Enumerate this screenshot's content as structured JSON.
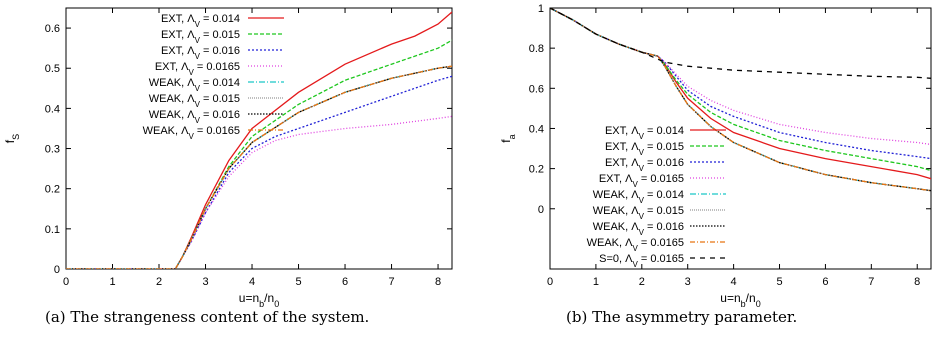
{
  "chart_data": [
    {
      "type": "line",
      "caption": "(a) The strangeness content of the system.",
      "ylabel": "f_S",
      "xlabel": "u=n_b/n_0",
      "xlim": [
        0,
        8.3
      ],
      "ylim": [
        0,
        0.65
      ],
      "xticks": [
        0,
        1,
        2,
        3,
        4,
        5,
        6,
        7,
        8
      ],
      "yticks": [
        0,
        0.1,
        0.2,
        0.3,
        0.4,
        0.5,
        0.6
      ],
      "grid": false,
      "legend_position": "top-right",
      "series": [
        {
          "name": "EXT, Λ_V = 0.014",
          "color": "#e41a1c",
          "dash": "",
          "x": [
            0,
            2.35,
            2.5,
            2.7,
            3.0,
            3.5,
            4.0,
            5.0,
            6.0,
            7.0,
            7.5,
            8.0,
            8.3
          ],
          "y": [
            0,
            0,
            0.03,
            0.08,
            0.16,
            0.27,
            0.35,
            0.44,
            0.51,
            0.56,
            0.58,
            0.61,
            0.64
          ]
        },
        {
          "name": "EXT, Λ_V = 0.015",
          "color": "#1ec71e",
          "dash": "4,2",
          "x": [
            0,
            2.35,
            2.5,
            2.7,
            3.0,
            3.5,
            4.0,
            5.0,
            6.0,
            7.0,
            8.0,
            8.3
          ],
          "y": [
            0,
            0,
            0.03,
            0.075,
            0.15,
            0.255,
            0.33,
            0.41,
            0.47,
            0.51,
            0.55,
            0.57
          ]
        },
        {
          "name": "EXT, Λ_V = 0.016",
          "color": "#2121d6",
          "dash": "2,2",
          "x": [
            0,
            2.35,
            2.5,
            2.7,
            3.0,
            3.5,
            4.0,
            4.5,
            5.0,
            6.0,
            7.0,
            8.0,
            8.3
          ],
          "y": [
            0,
            0,
            0.03,
            0.07,
            0.14,
            0.24,
            0.3,
            0.33,
            0.35,
            0.39,
            0.43,
            0.47,
            0.48
          ]
        },
        {
          "name": "EXT, Λ_V = 0.0165",
          "color": "#e040e0",
          "dash": "1,2",
          "x": [
            0,
            2.35,
            2.5,
            2.7,
            3.0,
            3.5,
            4.0,
            4.5,
            5.0,
            6.0,
            7.0,
            8.0,
            8.3
          ],
          "y": [
            0,
            0,
            0.03,
            0.07,
            0.14,
            0.23,
            0.29,
            0.32,
            0.335,
            0.35,
            0.36,
            0.375,
            0.38
          ]
        },
        {
          "name": "WEAK, Λ_V = 0.014",
          "color": "#1ac6c6",
          "dash": "6,2,1,2",
          "x": [
            0,
            2.35,
            2.5,
            2.7,
            3.0,
            3.5,
            4.0,
            5.0,
            6.0,
            7.0,
            8.0,
            8.3
          ],
          "y": [
            0,
            0,
            0.03,
            0.075,
            0.15,
            0.25,
            0.315,
            0.39,
            0.44,
            0.475,
            0.5,
            0.505
          ]
        },
        {
          "name": "WEAK, Λ_V = 0.015",
          "color": "#999999",
          "dash": "1,1",
          "x": [
            0,
            2.35,
            2.5,
            2.7,
            3.0,
            3.5,
            4.0,
            5.0,
            6.0,
            7.0,
            8.0,
            8.3
          ],
          "y": [
            0,
            0,
            0.03,
            0.075,
            0.15,
            0.25,
            0.315,
            0.39,
            0.44,
            0.475,
            0.5,
            0.505
          ]
        },
        {
          "name": "WEAK, Λ_V = 0.016",
          "color": "#000000",
          "dash": "1.5,1.5",
          "x": [
            0,
            2.35,
            2.5,
            2.7,
            3.0,
            3.5,
            4.0,
            5.0,
            6.0,
            7.0,
            8.0,
            8.3
          ],
          "y": [
            0,
            0,
            0.03,
            0.075,
            0.15,
            0.25,
            0.315,
            0.39,
            0.44,
            0.475,
            0.5,
            0.505
          ]
        },
        {
          "name": "WEAK, Λ_V = 0.0165",
          "color": "#e87512",
          "dash": "5,2,1,2",
          "x": [
            0,
            2.35,
            2.5,
            2.7,
            3.0,
            3.5,
            4.0,
            5.0,
            6.0,
            7.0,
            8.0,
            8.3
          ],
          "y": [
            0,
            0,
            0.03,
            0.075,
            0.15,
            0.25,
            0.315,
            0.39,
            0.44,
            0.475,
            0.5,
            0.505
          ]
        }
      ]
    },
    {
      "type": "line",
      "caption": "(b) The asymmetry parameter.",
      "ylabel": "f_a",
      "xlabel": "u=n_b/n_0",
      "xlim": [
        0,
        8.3
      ],
      "ylim": [
        -0.3,
        1.0
      ],
      "xticks": [
        0,
        1,
        2,
        3,
        4,
        5,
        6,
        7,
        8
      ],
      "yticks": [
        0,
        0.2,
        0.4,
        0.6,
        0.8,
        1
      ],
      "grid": false,
      "legend_position": "bottom-left",
      "series": [
        {
          "name": "EXT, Λ_V = 0.014",
          "color": "#e41a1c",
          "dash": "",
          "x": [
            0,
            0.5,
            1.0,
            1.5,
            2.0,
            2.35,
            2.5,
            2.75,
            3.0,
            3.5,
            4.0,
            5.0,
            6.0,
            7.0,
            8.0,
            8.3
          ],
          "y": [
            1.0,
            0.94,
            0.87,
            0.82,
            0.78,
            0.76,
            0.72,
            0.63,
            0.55,
            0.45,
            0.38,
            0.3,
            0.25,
            0.21,
            0.17,
            0.15
          ]
        },
        {
          "name": "EXT, Λ_V = 0.015",
          "color": "#1ec71e",
          "dash": "4,2",
          "x": [
            0,
            0.5,
            1.0,
            1.5,
            2.0,
            2.35,
            2.5,
            2.75,
            3.0,
            3.5,
            4.0,
            5.0,
            6.0,
            7.0,
            8.0,
            8.3
          ],
          "y": [
            1.0,
            0.94,
            0.87,
            0.82,
            0.78,
            0.76,
            0.72,
            0.64,
            0.57,
            0.48,
            0.42,
            0.34,
            0.29,
            0.25,
            0.21,
            0.19
          ]
        },
        {
          "name": "EXT, Λ_V = 0.016",
          "color": "#2121d6",
          "dash": "2,2",
          "x": [
            0,
            0.5,
            1.0,
            1.5,
            2.0,
            2.35,
            2.5,
            2.75,
            3.0,
            3.5,
            4.0,
            5.0,
            6.0,
            7.0,
            8.0,
            8.3
          ],
          "y": [
            1.0,
            0.94,
            0.87,
            0.82,
            0.78,
            0.76,
            0.73,
            0.66,
            0.59,
            0.51,
            0.46,
            0.38,
            0.33,
            0.29,
            0.26,
            0.25
          ]
        },
        {
          "name": "EXT, Λ_V = 0.0165",
          "color": "#e040e0",
          "dash": "1,2",
          "x": [
            0,
            0.5,
            1.0,
            1.5,
            2.0,
            2.35,
            2.5,
            2.75,
            3.0,
            3.5,
            4.0,
            5.0,
            6.0,
            7.0,
            8.0,
            8.3
          ],
          "y": [
            1.0,
            0.94,
            0.87,
            0.82,
            0.78,
            0.76,
            0.73,
            0.67,
            0.61,
            0.54,
            0.49,
            0.42,
            0.38,
            0.35,
            0.33,
            0.32
          ]
        },
        {
          "name": "WEAK, Λ_V = 0.014",
          "color": "#1ac6c6",
          "dash": "6,2,1,2",
          "x": [
            0,
            0.5,
            1.0,
            1.5,
            2.0,
            2.35,
            2.5,
            2.75,
            3.0,
            3.5,
            4.0,
            5.0,
            6.0,
            7.0,
            8.0,
            8.3
          ],
          "y": [
            1.0,
            0.94,
            0.87,
            0.82,
            0.78,
            0.76,
            0.71,
            0.61,
            0.52,
            0.41,
            0.33,
            0.23,
            0.17,
            0.13,
            0.1,
            0.09
          ]
        },
        {
          "name": "WEAK, Λ_V = 0.015",
          "color": "#999999",
          "dash": "1,1",
          "x": [
            0,
            0.5,
            1.0,
            1.5,
            2.0,
            2.35,
            2.5,
            2.75,
            3.0,
            3.5,
            4.0,
            5.0,
            6.0,
            7.0,
            8.0,
            8.3
          ],
          "y": [
            1.0,
            0.94,
            0.87,
            0.82,
            0.78,
            0.76,
            0.71,
            0.61,
            0.52,
            0.41,
            0.33,
            0.23,
            0.17,
            0.13,
            0.1,
            0.09
          ]
        },
        {
          "name": "WEAK, Λ_V = 0.016",
          "color": "#000000",
          "dash": "1.5,1.5",
          "x": [
            0,
            0.5,
            1.0,
            1.5,
            2.0,
            2.35,
            2.5,
            2.75,
            3.0,
            3.5,
            4.0,
            5.0,
            6.0,
            7.0,
            8.0,
            8.3
          ],
          "y": [
            1.0,
            0.94,
            0.87,
            0.82,
            0.78,
            0.76,
            0.71,
            0.61,
            0.52,
            0.41,
            0.33,
            0.23,
            0.17,
            0.13,
            0.1,
            0.09
          ]
        },
        {
          "name": "WEAK, Λ_V = 0.0165",
          "color": "#e87512",
          "dash": "5,2,1,2",
          "x": [
            0,
            0.5,
            1.0,
            1.5,
            2.0,
            2.35,
            2.5,
            2.75,
            3.0,
            3.5,
            4.0,
            5.0,
            6.0,
            7.0,
            8.0,
            8.3
          ],
          "y": [
            1.0,
            0.94,
            0.87,
            0.82,
            0.78,
            0.76,
            0.71,
            0.61,
            0.52,
            0.41,
            0.33,
            0.23,
            0.17,
            0.13,
            0.1,
            0.09
          ]
        },
        {
          "name": "S=0, Λ_V = 0.0165",
          "color": "#000000",
          "dash": "5,5",
          "x": [
            0,
            0.5,
            1.0,
            1.5,
            2.0,
            2.5,
            3.0,
            4.0,
            5.0,
            6.0,
            7.0,
            8.0,
            8.3
          ],
          "y": [
            1.0,
            0.94,
            0.87,
            0.82,
            0.78,
            0.73,
            0.71,
            0.69,
            0.68,
            0.67,
            0.66,
            0.655,
            0.65
          ]
        }
      ]
    }
  ]
}
